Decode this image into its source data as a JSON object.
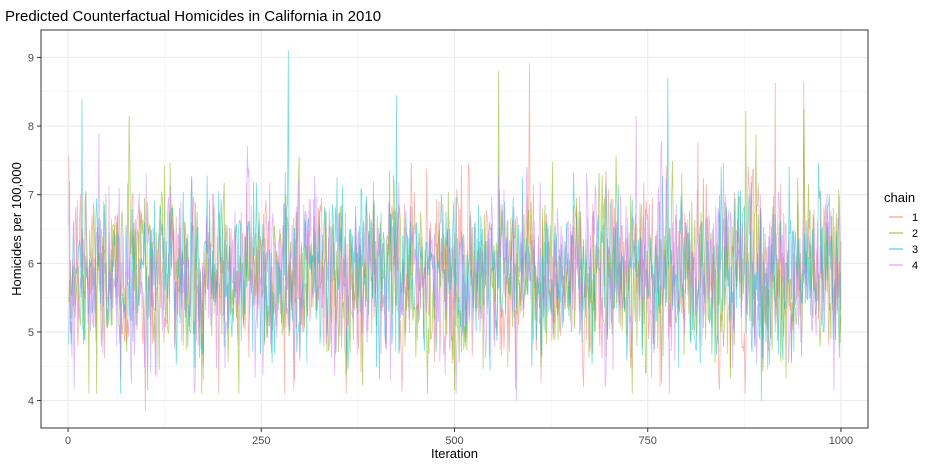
{
  "chart_data": {
    "type": "line",
    "title": "Predicted Counterfactual Homicides in California in 2010",
    "xlabel": "Iteration",
    "ylabel": "Homicides per 100,000",
    "xlim": [
      -35,
      1035
    ],
    "ylim": [
      3.6,
      9.4
    ],
    "x_ticks": [
      0,
      250,
      500,
      750,
      1000
    ],
    "x_tick_labels": [
      "0",
      "250",
      "500",
      "750",
      "1000"
    ],
    "y_ticks": [
      4,
      5,
      6,
      7,
      8,
      9
    ],
    "y_tick_labels": [
      "4",
      "5",
      "6",
      "7",
      "8",
      "9"
    ],
    "grid": true,
    "legend_title": "chain",
    "legend_position": "right",
    "series": [
      {
        "name": "1",
        "color": "#F8766D",
        "n_iter": 1000,
        "center": 5.85,
        "spread": 0.62,
        "highlights": [
          {
            "x": 100,
            "y": 3.85
          },
          {
            "x": 597,
            "y": 8.92
          },
          {
            "x": 915,
            "y": 8.63
          },
          {
            "x": 952,
            "y": 8.64
          },
          {
            "x": 280,
            "y": 4.1
          }
        ]
      },
      {
        "name": "2",
        "color": "#7CAE00",
        "n_iter": 1000,
        "center": 5.85,
        "spread": 0.62,
        "highlights": [
          {
            "x": 557,
            "y": 8.8
          },
          {
            "x": 877,
            "y": 8.22
          },
          {
            "x": 952,
            "y": 8.25
          },
          {
            "x": 500,
            "y": 4.15
          }
        ]
      },
      {
        "name": "3",
        "color": "#00BFC4",
        "n_iter": 1000,
        "center": 5.85,
        "spread": 0.62,
        "highlights": [
          {
            "x": 285,
            "y": 9.1
          },
          {
            "x": 18,
            "y": 8.4
          },
          {
            "x": 425,
            "y": 8.45
          },
          {
            "x": 776,
            "y": 8.7
          },
          {
            "x": 897,
            "y": 4.0
          }
        ]
      },
      {
        "name": "4",
        "color": "#C77CFF",
        "n_iter": 1000,
        "center": 5.85,
        "spread": 0.62,
        "highlights": [
          {
            "x": 580,
            "y": 4.0
          },
          {
            "x": 735,
            "y": 8.15
          },
          {
            "x": 40,
            "y": 7.9
          }
        ]
      }
    ]
  }
}
